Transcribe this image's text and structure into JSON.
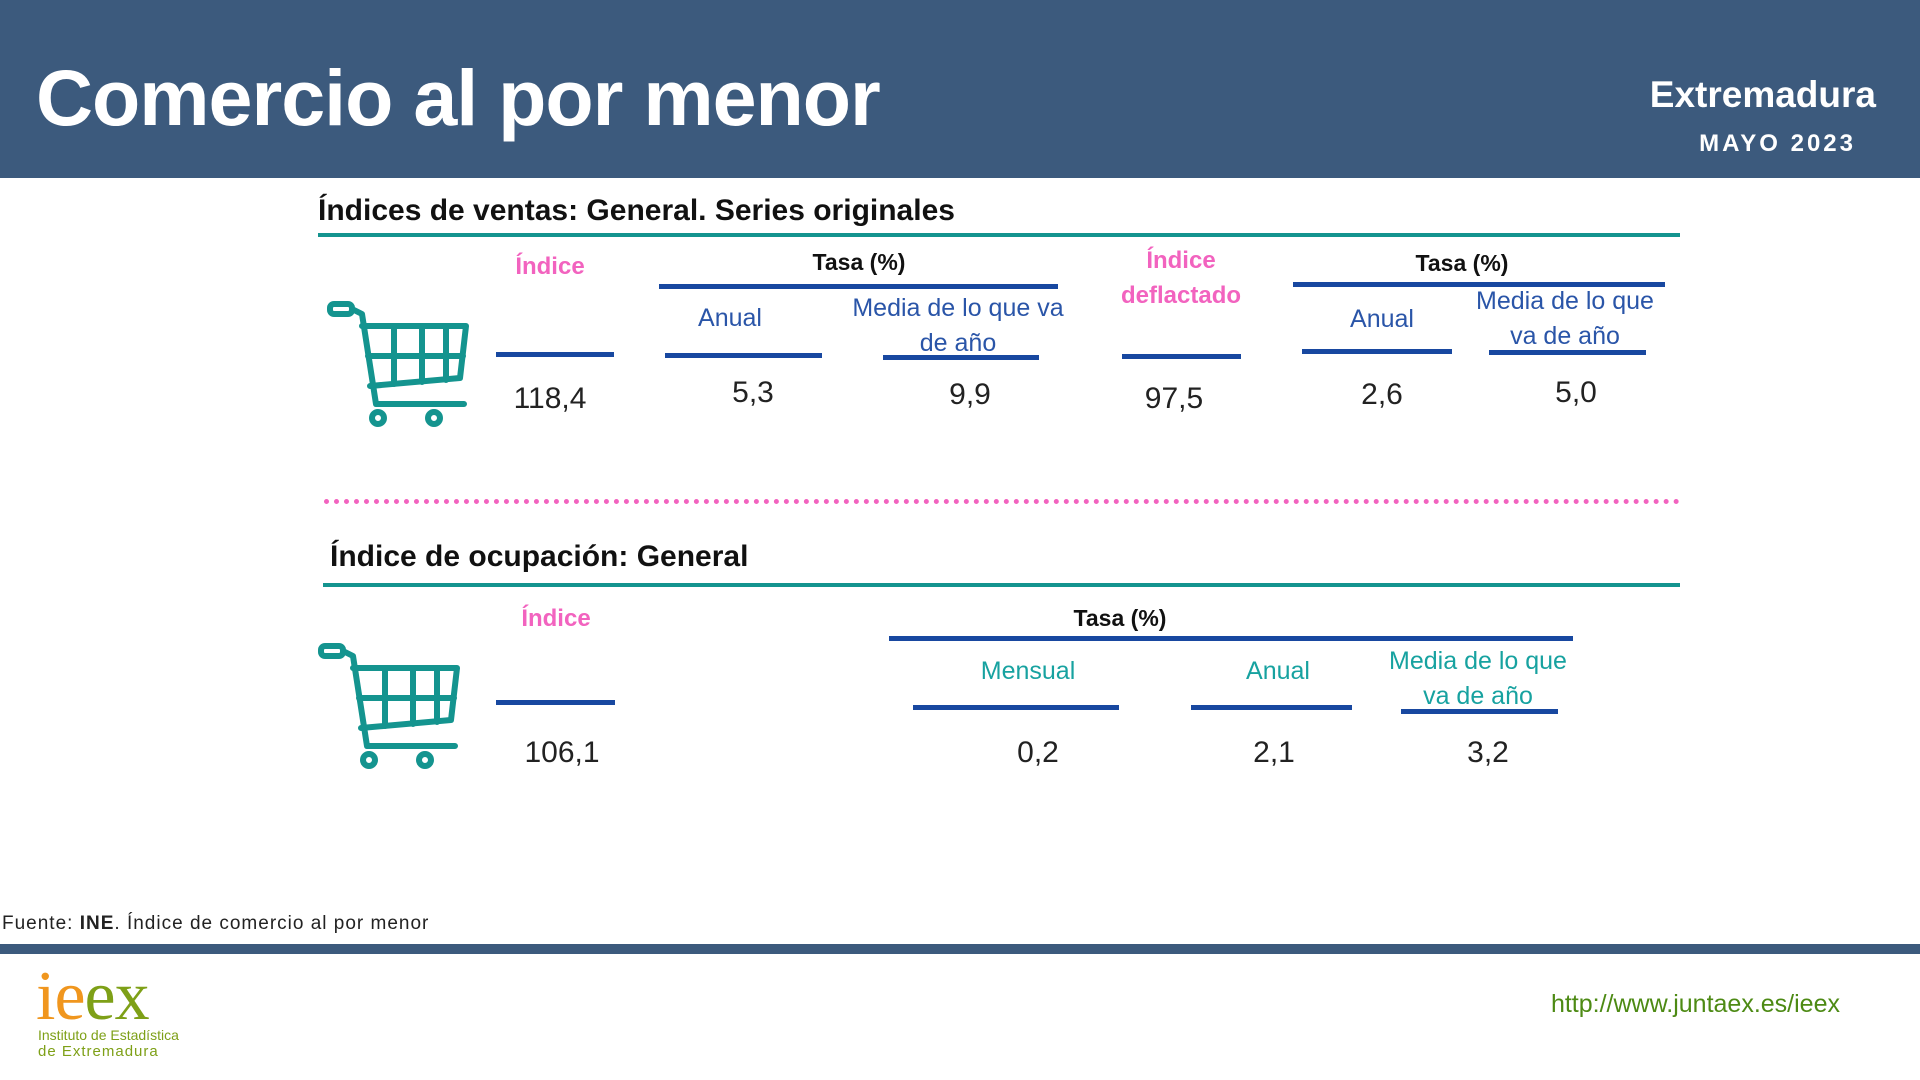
{
  "header": {
    "title": "Comercio al por menor",
    "region": "Extremadura",
    "period": "MAYO 2023"
  },
  "sales": {
    "section_title": "Índices de ventas: General. Series originales",
    "cart_icon": "shopping-cart-icon",
    "index_label": "Índice",
    "index_value": "118,4",
    "tasa_label": "Tasa (%)",
    "anual_label": "Anual",
    "anual_value": "5,3",
    "media_label": "Media de lo que va de año",
    "media_value": "9,9",
    "deflated_label": "Índice deflactado",
    "deflated_value": "97,5",
    "tasa2_label": "Tasa (%)",
    "anual2_label": "Anual",
    "anual2_value": "2,6",
    "media2_label": "Media de lo que va de año",
    "media2_value": "5,0"
  },
  "occupation": {
    "section_title": "Índice de ocupación: General",
    "cart_icon": "shopping-cart-icon",
    "index_label": "Índice",
    "index_value": "106,1",
    "tasa_label": "Tasa (%)",
    "mensual_label": "Mensual",
    "mensual_value": "0,2",
    "anual_label": "Anual",
    "anual_value": "2,1",
    "media_label": "Media de lo que va de año",
    "media_value": "3,2"
  },
  "footer": {
    "source_prefix": "Fuente: ",
    "source_org": "INE",
    "source_rest": ". Índice de comercio al por menor",
    "logo_text_1": "ie",
    "logo_text_2": "ex",
    "logo_line1": "Instituto de Estadística",
    "logo_line2": "de Extremadura",
    "url": "http://www.juntaex.es/ieex"
  },
  "colors": {
    "header_bg": "#3c5a7d",
    "accent_pink": "#f263bf",
    "teal": "#14948f",
    "blue": "#1848a0",
    "logo_orange": "#f0961e",
    "logo_green": "#7ea017"
  }
}
